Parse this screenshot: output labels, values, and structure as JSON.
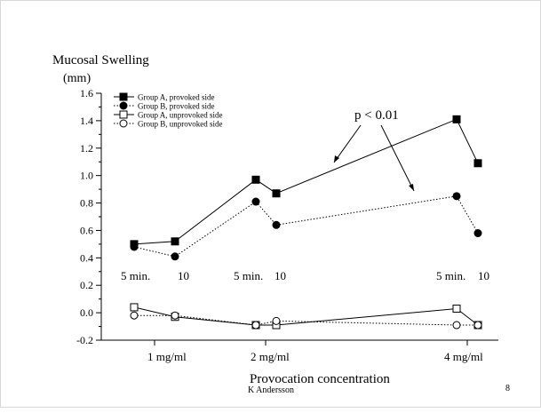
{
  "slide": {
    "footer_author": "K Andersson",
    "page_number": "8"
  },
  "chart_data": {
    "type": "line",
    "title_lines": [
      "Mucosal Swelling",
      "(mm)"
    ],
    "xlabel": "Provocation concentration",
    "ylim": [
      -0.2,
      1.6
    ],
    "y_ticks": [
      -0.2,
      0.0,
      0.2,
      0.4,
      0.6,
      0.8,
      1.0,
      1.2,
      1.4,
      1.6
    ],
    "y_tick_labels": [
      "-0.2",
      "0.0",
      "0.2",
      "0.4",
      "0.6",
      "0.8",
      "1.0",
      "1.2",
      "1.4",
      "1.6"
    ],
    "x_points": [
      "1 mg/ml 5 min.",
      "1 mg/ml 10",
      "2 mg/ml 5 min.",
      "2 mg/ml 10",
      "4 mg/ml 5 min.",
      "4 mg/ml 10"
    ],
    "concentration_labels": [
      "1 mg/ml",
      "2 mg/ml",
      "4 mg/ml"
    ],
    "time_labels": [
      {
        "five": "5 min.",
        "ten": "10"
      },
      {
        "five": "5 min.",
        "ten": "10"
      },
      {
        "five": "5 min.",
        "ten": "10"
      }
    ],
    "series": [
      {
        "name": "Group A, provoked side",
        "marker": "filled-square",
        "line": "solid",
        "values": [
          0.5,
          0.52,
          0.97,
          0.87,
          1.41,
          1.09
        ]
      },
      {
        "name": "Group B, provoked side",
        "marker": "filled-circle",
        "line": "dotted",
        "values": [
          0.48,
          0.41,
          0.81,
          0.64,
          0.85,
          0.58
        ]
      },
      {
        "name": "Group A, unprovoked side",
        "marker": "open-square",
        "line": "solid",
        "values": [
          0.04,
          -0.03,
          -0.09,
          -0.09,
          0.03,
          -0.09
        ]
      },
      {
        "name": "Group B, unprovoked side",
        "marker": "open-circle",
        "line": "dotted",
        "values": [
          -0.02,
          -0.02,
          -0.09,
          -0.06,
          -0.09,
          -0.09
        ]
      }
    ],
    "annotation": {
      "text": "p < 0.01"
    },
    "legend_position": "top-left",
    "grid": false
  }
}
